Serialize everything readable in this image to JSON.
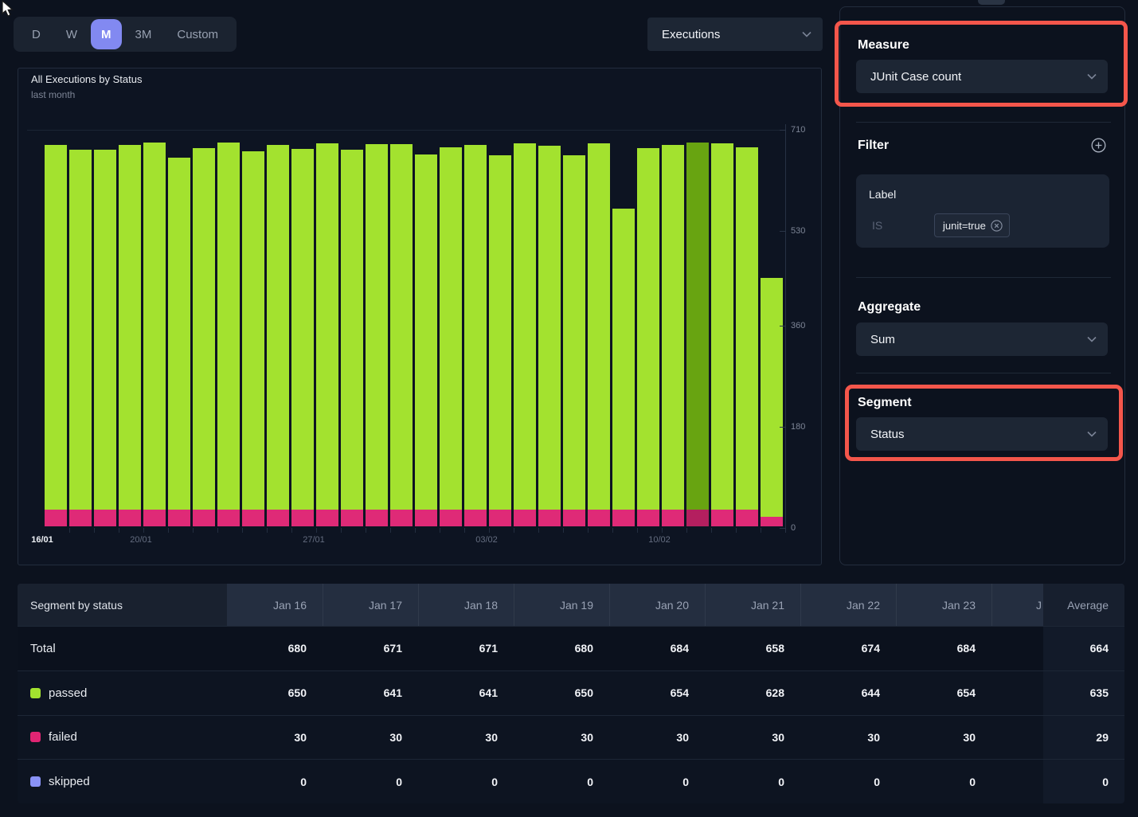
{
  "toolbar": {
    "time_ranges": [
      "D",
      "W",
      "M",
      "3M",
      "Custom"
    ],
    "selected_range": "M",
    "metric_select_value": "Executions"
  },
  "chart_panel": {
    "title": "All Executions by Status",
    "subtitle": "last month"
  },
  "chart_data": {
    "type": "bar",
    "stacked": true,
    "x": [
      "16/01",
      "17/01",
      "18/01",
      "19/01",
      "20/01",
      "21/01",
      "22/01",
      "23/01",
      "24/01",
      "25/01",
      "26/01",
      "27/01",
      "28/01",
      "29/01",
      "30/01",
      "31/01",
      "01/02",
      "02/02",
      "03/02",
      "04/02",
      "05/02",
      "06/02",
      "07/02",
      "08/02",
      "09/02",
      "10/02",
      "11/02",
      "12/02",
      "13/02",
      "14/02"
    ],
    "series": [
      {
        "name": "passed",
        "color": "#a3e22f",
        "values": [
          650,
          641,
          641,
          650,
          654,
          628,
          644,
          654,
          639,
          650,
          643,
          653,
          641,
          652,
          652,
          633,
          646,
          650,
          632,
          653,
          649,
          632,
          653,
          537,
          645,
          650,
          654,
          653,
          646,
          426
        ]
      },
      {
        "name": "failed",
        "color": "#df2a77",
        "values": [
          30,
          30,
          30,
          30,
          30,
          30,
          30,
          30,
          30,
          30,
          30,
          30,
          30,
          30,
          30,
          30,
          30,
          30,
          30,
          30,
          30,
          30,
          30,
          30,
          30,
          30,
          30,
          30,
          30,
          17
        ]
      }
    ],
    "highlighted_bar": {
      "index": 26,
      "passed_color": "#68a411",
      "failed_color": "#b41f5f"
    },
    "y_ticks": [
      0,
      180,
      360,
      530,
      710
    ],
    "ylim": [
      0,
      710
    ],
    "y_axis_side": "right",
    "x_tick_labels": [
      {
        "label": "16/01",
        "index": 0,
        "emphasis": true
      },
      {
        "label": "20/01",
        "index": 4
      },
      {
        "label": "27/01",
        "index": 11
      },
      {
        "label": "03/02",
        "index": 18
      },
      {
        "label": "10/02",
        "index": 25
      }
    ],
    "legend_position": "none"
  },
  "sidebar": {
    "measure": {
      "label": "Measure",
      "value": "JUnit Case count",
      "highlighted": true
    },
    "filter": {
      "label": "Filter",
      "card_field": "Label",
      "operator": "IS",
      "chip": "junit=true"
    },
    "aggregate": {
      "label": "Aggregate",
      "value": "Sum"
    },
    "segment": {
      "label": "Segment",
      "value": "Status",
      "highlighted": true
    }
  },
  "table": {
    "corner_label": "Segment by status",
    "columns": [
      "Jan 16",
      "Jan 17",
      "Jan 18",
      "Jan 19",
      "Jan 20",
      "Jan 21",
      "Jan 22",
      "Jan 23"
    ],
    "clipped_column_label": "J",
    "average_column_label": "Average",
    "rows": [
      {
        "label": "Total",
        "swatch": null,
        "values": [
          680,
          671,
          671,
          680,
          684,
          658,
          674,
          684
        ],
        "average": 664
      },
      {
        "label": "passed",
        "swatch": "#a3e22f",
        "values": [
          650,
          641,
          641,
          650,
          654,
          628,
          644,
          654
        ],
        "average": 635
      },
      {
        "label": "failed",
        "swatch": "#e02573",
        "values": [
          30,
          30,
          30,
          30,
          30,
          30,
          30,
          30
        ],
        "average": 29
      },
      {
        "label": "skipped",
        "swatch": "#8a93f8",
        "values": [
          0,
          0,
          0,
          0,
          0,
          0,
          0,
          0
        ],
        "average": 0
      }
    ]
  },
  "colors": {
    "annotation_red": "#f4564b",
    "passed_green": "#a3e22f",
    "failed_pink": "#df2a77",
    "skipped_purple": "#8a93f8",
    "selected_button": "#8289f1"
  }
}
